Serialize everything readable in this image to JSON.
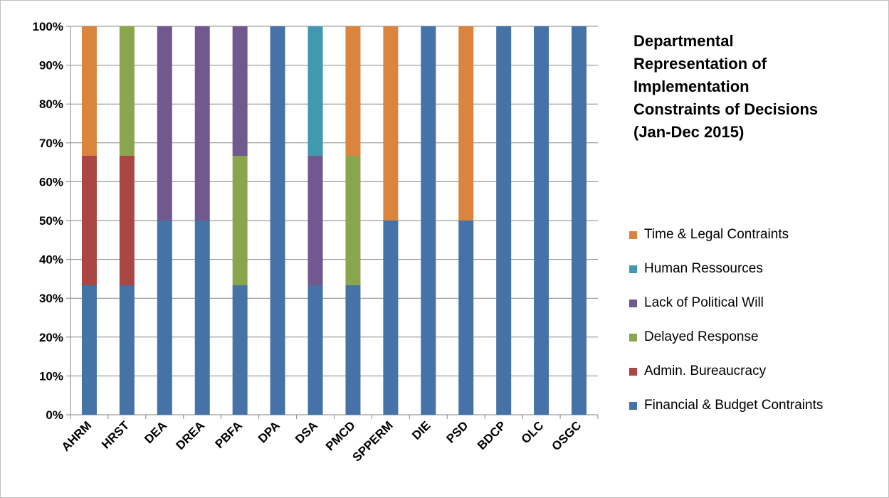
{
  "chart_data": {
    "type": "bar",
    "stacked": "percent",
    "title_lines": [
      "Departmental",
      "Representation of",
      "Implementation",
      "Constraints of Decisions",
      "(Jan-Dec 2015)"
    ],
    "categories": [
      "AHRM",
      "HRST",
      "DEA",
      "DREA",
      "PBFA",
      "DPA",
      "DSA",
      "PMCD",
      "SPPERM",
      "DIE",
      "PSD",
      "BDCP",
      "OLC",
      "OSGC"
    ],
    "yticks": [
      "0%",
      "10%",
      "20%",
      "30%",
      "40%",
      "50%",
      "60%",
      "70%",
      "80%",
      "90%",
      "100%"
    ],
    "ylim": [
      0,
      100
    ],
    "grid": true,
    "legend_position": "right",
    "series": [
      {
        "name": "Financial & Budget Contraints",
        "color": "#4572a7",
        "values": [
          33.3,
          33.3,
          50,
          50,
          33.3,
          100,
          33.3,
          33.3,
          50,
          100,
          50,
          100,
          100,
          100
        ]
      },
      {
        "name": "Admin. Bureaucracy",
        "color": "#aa4643",
        "values": [
          33.3,
          33.3,
          0,
          0,
          0,
          0,
          0,
          0,
          0,
          0,
          0,
          0,
          0,
          0
        ]
      },
      {
        "name": "Delayed Response",
        "color": "#89a54e",
        "values": [
          0,
          33.3,
          0,
          0,
          33.3,
          0,
          0,
          33.3,
          0,
          0,
          0,
          0,
          0,
          0
        ]
      },
      {
        "name": "Lack of Political Will",
        "color": "#71588f",
        "values": [
          0,
          0,
          50,
          50,
          33.3,
          0,
          33.3,
          0,
          0,
          0,
          0,
          0,
          0,
          0
        ]
      },
      {
        "name": "Human Ressources",
        "color": "#4198af",
        "values": [
          0,
          0,
          0,
          0,
          0,
          0,
          33.3,
          0,
          0,
          0,
          0,
          0,
          0,
          0
        ]
      },
      {
        "name": "Time & Legal Contraints",
        "color": "#db843d",
        "values": [
          33.3,
          0,
          0,
          0,
          0,
          0,
          0,
          33.3,
          50,
          0,
          50,
          0,
          0,
          0
        ]
      }
    ],
    "legend_order": [
      5,
      4,
      3,
      2,
      1,
      0
    ]
  }
}
